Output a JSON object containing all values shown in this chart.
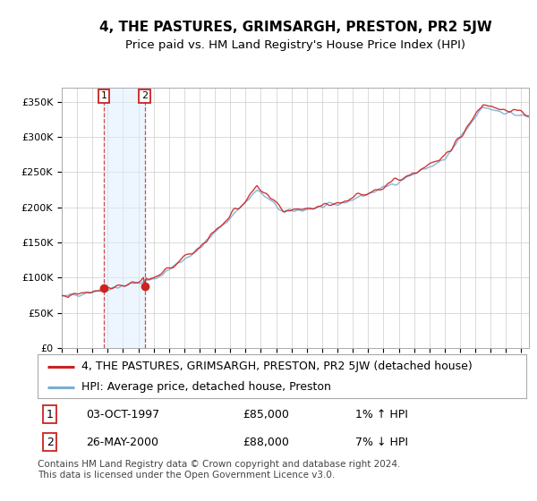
{
  "title": "4, THE PASTURES, GRIMSARGH, PRESTON, PR2 5JW",
  "subtitle": "Price paid vs. HM Land Registry's House Price Index (HPI)",
  "ylim": [
    0,
    370000
  ],
  "yticks": [
    0,
    50000,
    100000,
    150000,
    200000,
    250000,
    300000,
    350000
  ],
  "ytick_labels": [
    "£0",
    "£50K",
    "£100K",
    "£150K",
    "£200K",
    "£250K",
    "£300K",
    "£350K"
  ],
  "sale1_t": 1997.75,
  "sale1_price": 85000,
  "sale2_t": 2000.417,
  "sale2_price": 88000,
  "legend_property": "4, THE PASTURES, GRIMSARGH, PRESTON, PR2 5JW (detached house)",
  "legend_hpi": "HPI: Average price, detached house, Preston",
  "note1_label": "1",
  "note1_date": "03-OCT-1997",
  "note1_price": "£85,000",
  "note1_hpi": "1% ↑ HPI",
  "note2_label": "2",
  "note2_date": "26-MAY-2000",
  "note2_price": "£88,000",
  "note2_hpi": "7% ↓ HPI",
  "footer": "Contains HM Land Registry data © Crown copyright and database right 2024.\nThis data is licensed under the Open Government Licence v3.0.",
  "property_color": "#cc2222",
  "hpi_color": "#7aadd4",
  "shade_color": "#ddeeff",
  "title_fontsize": 11,
  "subtitle_fontsize": 9.5,
  "tick_fontsize": 8,
  "legend_fontsize": 9,
  "note_fontsize": 9,
  "footer_fontsize": 7.5,
  "xlim_start": 1995.0,
  "xlim_end": 2025.5
}
